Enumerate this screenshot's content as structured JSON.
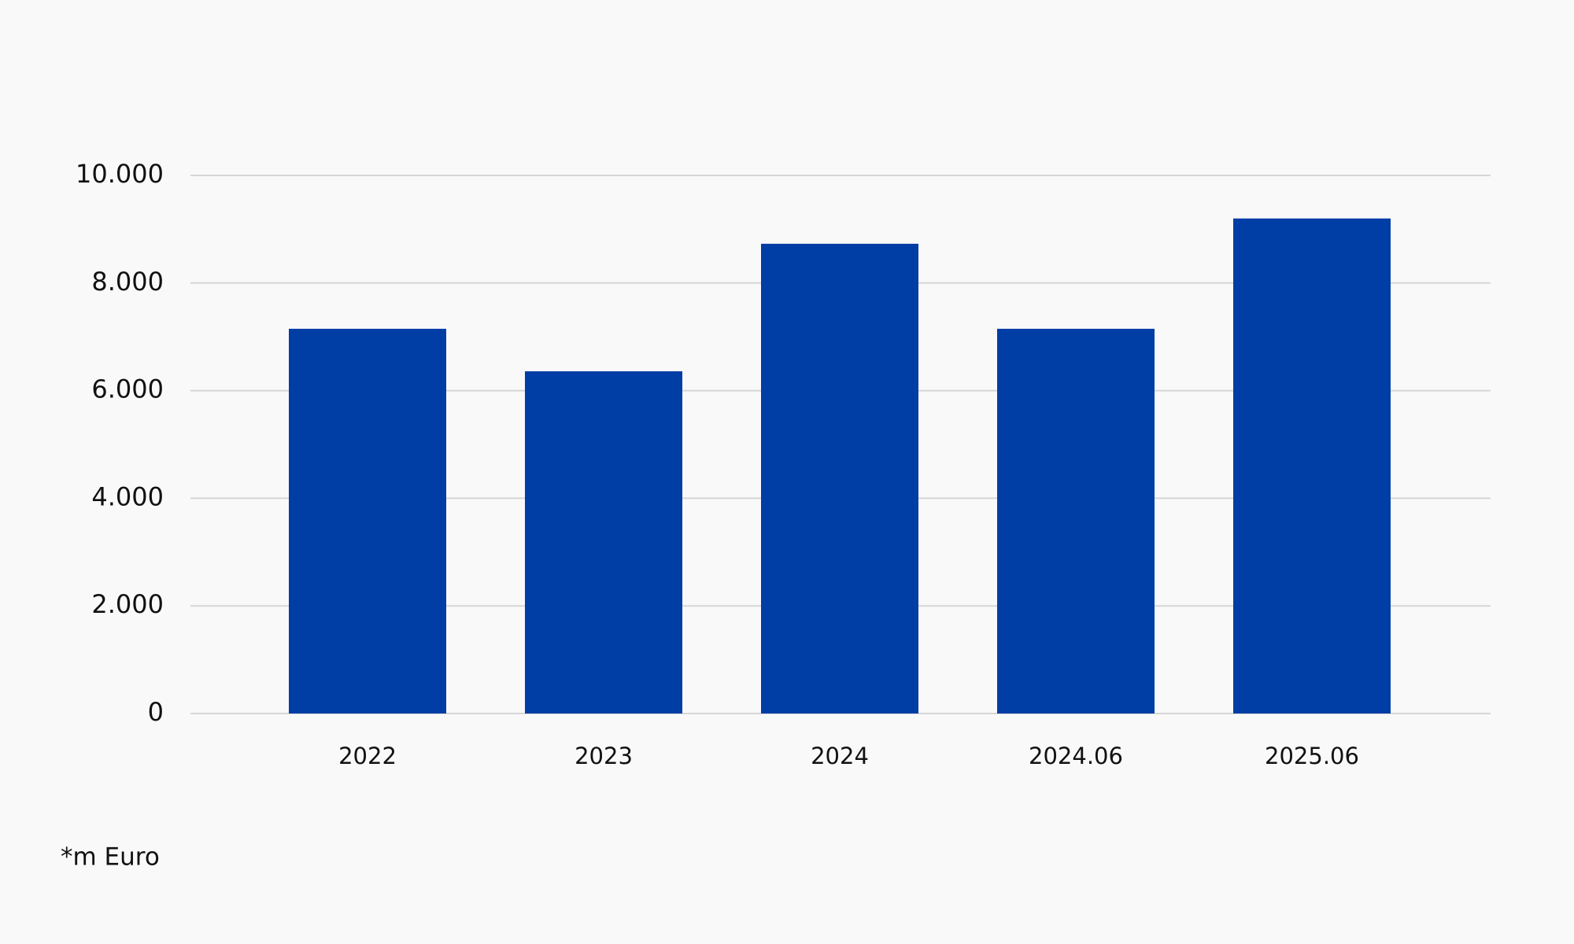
{
  "chart_data": {
    "type": "bar",
    "categories": [
      "2022",
      "2023",
      "2024",
      "2024.06",
      "2025.06"
    ],
    "values": [
      7150,
      6360,
      8730,
      7150,
      9200
    ],
    "color": "#003da5",
    "ylim": [
      0,
      10000
    ],
    "yticks": [
      0,
      {
        "value": 2000,
        "label": "2.000"
      },
      {
        "value": 4000,
        "label": "4.000"
      },
      {
        "value": 6000,
        "label": "6.000"
      },
      {
        "value": 8000,
        "label": "8.000"
      },
      {
        "value": 10000,
        "label": "10.000"
      }
    ],
    "grid": true,
    "note": "*m Euro"
  }
}
